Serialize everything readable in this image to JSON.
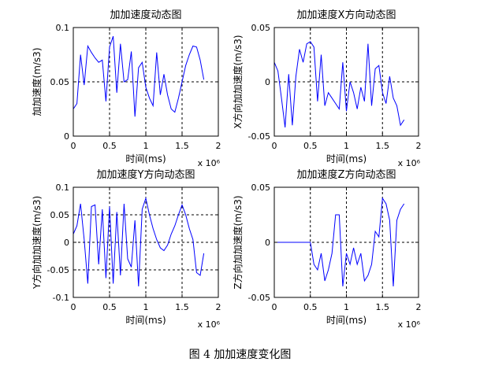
{
  "caption": "图 4  加加速度变化图",
  "style": {
    "line_color": "#0000ff",
    "axis_color": "#000000",
    "grid_color": "#000000"
  },
  "chart_data": [
    {
      "type": "line",
      "title": "加加速度动态图",
      "xlabel": "时间(ms)",
      "ylabel": "加加速度(m/s3)",
      "x_multiplier": "x 10⁶",
      "xlim": [
        0,
        2
      ],
      "ylim": [
        0,
        0.1
      ],
      "xticks": [
        0,
        0.5,
        1,
        1.5,
        2
      ],
      "xtick_labels": [
        "0",
        "0.5",
        "1",
        "1.5",
        "2"
      ],
      "yticks": [
        0,
        0.05,
        0.1
      ],
      "ytick_labels": [
        "0",
        "0.05",
        "0.1"
      ],
      "grid": "dashed",
      "series": [
        {
          "x": [
            0.0,
            0.05,
            0.1,
            0.15,
            0.2,
            0.25,
            0.3,
            0.35,
            0.4,
            0.45,
            0.5,
            0.55,
            0.6,
            0.65,
            0.7,
            0.75,
            0.8,
            0.85,
            0.9,
            0.95,
            1.0,
            1.05,
            1.1,
            1.15,
            1.2,
            1.25,
            1.3,
            1.35,
            1.4,
            1.45,
            1.5,
            1.55,
            1.6,
            1.65,
            1.7,
            1.75,
            1.8
          ],
          "y": [
            0.025,
            0.03,
            0.075,
            0.047,
            0.083,
            0.077,
            0.072,
            0.068,
            0.07,
            0.032,
            0.082,
            0.092,
            0.04,
            0.085,
            0.05,
            0.052,
            0.078,
            0.018,
            0.063,
            0.068,
            0.045,
            0.035,
            0.028,
            0.077,
            0.038,
            0.057,
            0.038,
            0.025,
            0.022,
            0.035,
            0.05,
            0.065,
            0.075,
            0.083,
            0.082,
            0.07,
            0.052
          ]
        }
      ]
    },
    {
      "type": "line",
      "title": "加加速度X方向动态图",
      "xlabel": "时间(ms)",
      "ylabel": "X方向加加速度(m/s3)",
      "x_multiplier": "x 10⁶",
      "xlim": [
        0,
        2
      ],
      "ylim": [
        -0.05,
        0.05
      ],
      "xticks": [
        0,
        0.5,
        1,
        1.5,
        2
      ],
      "xtick_labels": [
        "0",
        "0.5",
        "1",
        "1.5",
        "2"
      ],
      "yticks": [
        -0.05,
        0,
        0.05
      ],
      "ytick_labels": [
        "-0.05",
        "0",
        "0.05"
      ],
      "grid": "dashed",
      "series": [
        {
          "x": [
            0.0,
            0.05,
            0.1,
            0.15,
            0.2,
            0.25,
            0.3,
            0.35,
            0.4,
            0.45,
            0.5,
            0.55,
            0.6,
            0.65,
            0.7,
            0.75,
            0.8,
            0.85,
            0.9,
            0.95,
            1.0,
            1.05,
            1.1,
            1.15,
            1.2,
            1.25,
            1.3,
            1.35,
            1.4,
            1.45,
            1.5,
            1.55,
            1.6,
            1.65,
            1.7,
            1.75,
            1.8
          ],
          "y": [
            0.018,
            0.01,
            -0.015,
            -0.042,
            0.007,
            -0.04,
            0.005,
            0.03,
            0.018,
            0.035,
            0.037,
            0.032,
            -0.018,
            0.025,
            -0.022,
            -0.01,
            -0.015,
            -0.02,
            -0.025,
            0.018,
            -0.027,
            0.0,
            -0.01,
            -0.025,
            -0.005,
            -0.018,
            0.035,
            -0.022,
            0.012,
            0.015,
            -0.01,
            -0.02,
            0.005,
            -0.015,
            -0.022,
            -0.04,
            -0.035
          ]
        }
      ]
    },
    {
      "type": "line",
      "title": "加加速度Y方向动态图",
      "xlabel": "时间(ms)",
      "ylabel": "Y方向加加速度(m/s3)",
      "x_multiplier": "x 10⁶",
      "xlim": [
        0,
        2
      ],
      "ylim": [
        -0.1,
        0.1
      ],
      "xticks": [
        0,
        0.5,
        1,
        1.5,
        2
      ],
      "xtick_labels": [
        "0",
        "0.5",
        "1",
        "1.5",
        "2"
      ],
      "yticks": [
        -0.1,
        -0.05,
        0,
        0.05,
        0.1
      ],
      "ytick_labels": [
        "-0.1",
        "-0.05",
        "0",
        "0.05",
        "0.1"
      ],
      "grid": "dashed",
      "series": [
        {
          "x": [
            0.0,
            0.05,
            0.1,
            0.15,
            0.2,
            0.25,
            0.3,
            0.35,
            0.4,
            0.45,
            0.5,
            0.55,
            0.6,
            0.65,
            0.7,
            0.75,
            0.8,
            0.85,
            0.9,
            0.95,
            1.0,
            1.05,
            1.1,
            1.15,
            1.2,
            1.25,
            1.3,
            1.35,
            1.4,
            1.45,
            1.5,
            1.55,
            1.6,
            1.65,
            1.7,
            1.75,
            1.8
          ],
          "y": [
            0.015,
            0.03,
            0.07,
            0.005,
            -0.075,
            0.065,
            0.068,
            -0.04,
            0.06,
            -0.065,
            0.065,
            -0.075,
            0.055,
            -0.06,
            0.07,
            -0.03,
            -0.045,
            0.04,
            -0.08,
            0.06,
            0.08,
            0.05,
            0.025,
            0.005,
            -0.01,
            -0.015,
            -0.005,
            0.015,
            0.03,
            0.05,
            0.068,
            0.05,
            0.025,
            0.005,
            -0.055,
            -0.06,
            -0.02
          ]
        }
      ]
    },
    {
      "type": "line",
      "title": "加加速度Z方向动态图",
      "xlabel": "时间(ms)",
      "ylabel": "Z方向加加速度(m/s3)",
      "x_multiplier": "x 10⁶",
      "xlim": [
        0,
        2
      ],
      "ylim": [
        -0.05,
        0.05
      ],
      "xticks": [
        0,
        0.5,
        1,
        1.5,
        2
      ],
      "xtick_labels": [
        "0",
        "0.5",
        "1",
        "1.5",
        "2"
      ],
      "yticks": [
        -0.05,
        0,
        0.05
      ],
      "ytick_labels": [
        "-0.05",
        "0",
        "0.05"
      ],
      "grid": "dashed",
      "series": [
        {
          "x": [
            0.0,
            0.25,
            0.5,
            0.55,
            0.6,
            0.65,
            0.7,
            0.75,
            0.8,
            0.85,
            0.9,
            0.95,
            1.0,
            1.05,
            1.1,
            1.15,
            1.2,
            1.25,
            1.3,
            1.35,
            1.4,
            1.45,
            1.5,
            1.55,
            1.6,
            1.65,
            1.7,
            1.75,
            1.8
          ],
          "y": [
            0.0,
            0.0,
            0.0,
            -0.02,
            -0.025,
            -0.01,
            -0.035,
            -0.025,
            -0.01,
            0.025,
            0.025,
            -0.04,
            -0.01,
            -0.02,
            -0.005,
            -0.02,
            -0.01,
            -0.035,
            -0.03,
            -0.02,
            0.01,
            0.005,
            0.04,
            0.035,
            0.02,
            -0.04,
            0.02,
            0.03,
            0.035
          ]
        }
      ]
    }
  ]
}
